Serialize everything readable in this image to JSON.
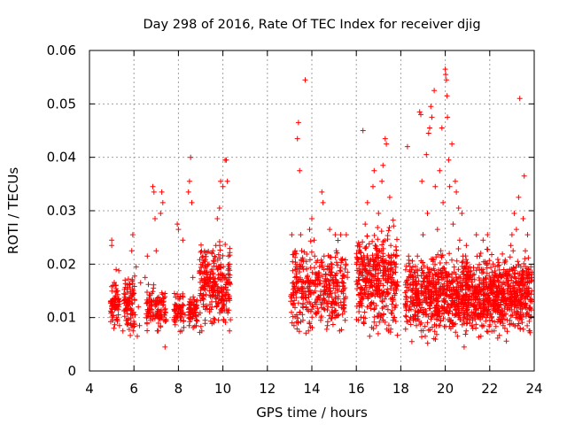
{
  "chart_data": {
    "type": "scatter",
    "title": "Day 298 of 2016, Rate Of TEC Index for receiver djig",
    "xlabel": "GPS time / hours",
    "ylabel": "ROTI / TECUs",
    "xlim": [
      4,
      24
    ],
    "ylim": [
      0,
      0.06
    ],
    "xticks": [
      4,
      6,
      8,
      10,
      12,
      14,
      16,
      18,
      20,
      22,
      24
    ],
    "yticks": [
      0,
      0.01,
      0.02,
      0.03,
      0.04,
      0.05,
      0.06
    ],
    "xtick_labels": [
      "4",
      "6",
      "8",
      "10",
      "12",
      "14",
      "16",
      "18",
      "20",
      "22",
      "24"
    ],
    "ytick_labels": [
      "0",
      "0.01",
      "0.02",
      "0.03",
      "0.04",
      "0.05",
      "0.06"
    ],
    "grid": true,
    "marker": "+",
    "marker_color": "#ff0000",
    "series": [
      {
        "name": "ROTI",
        "points": [
          [
            5.0,
            0.0245
          ],
          [
            5.0,
            0.0235
          ],
          [
            5.0,
            0.011
          ],
          [
            5.05,
            0.0095
          ],
          [
            5.1,
            0.008
          ],
          [
            5.15,
            0.0125
          ],
          [
            5.2,
            0.019
          ],
          [
            5.25,
            0.015
          ],
          [
            5.3,
            0.0105
          ],
          [
            5.35,
            0.0085
          ],
          [
            5.5,
            0.0075
          ],
          [
            5.6,
            0.017
          ],
          [
            5.7,
            0.0115
          ],
          [
            5.75,
            0.009
          ],
          [
            5.8,
            0.013
          ],
          [
            5.9,
            0.0225
          ],
          [
            5.95,
            0.0255
          ],
          [
            6.0,
            0.0145
          ],
          [
            6.05,
            0.0105
          ],
          [
            6.1,
            0.0195
          ],
          [
            6.15,
            0.0065
          ],
          [
            6.2,
            0.012
          ],
          [
            6.25,
            0.0085
          ],
          [
            6.3,
            0.0165
          ],
          [
            6.5,
            0.0175
          ],
          [
            6.6,
            0.0215
          ],
          [
            6.7,
            0.0135
          ],
          [
            6.75,
            0.0095
          ],
          [
            6.8,
            0.0115
          ],
          [
            6.85,
            0.0345
          ],
          [
            6.9,
            0.0335
          ],
          [
            6.95,
            0.0285
          ],
          [
            7.0,
            0.0225
          ],
          [
            7.05,
            0.0075
          ],
          [
            7.1,
            0.0115
          ],
          [
            7.2,
            0.0295
          ],
          [
            7.25,
            0.0335
          ],
          [
            7.3,
            0.0315
          ],
          [
            7.35,
            0.0105
          ],
          [
            7.4,
            0.0145
          ],
          [
            7.4,
            0.0045
          ],
          [
            7.8,
            0.0115
          ],
          [
            7.9,
            0.0095
          ],
          [
            7.95,
            0.0275
          ],
          [
            8.0,
            0.0265
          ],
          [
            8.05,
            0.0135
          ],
          [
            8.15,
            0.0075
          ],
          [
            8.2,
            0.0245
          ],
          [
            8.3,
            0.0105
          ],
          [
            8.45,
            0.0335
          ],
          [
            8.5,
            0.0355
          ],
          [
            8.55,
            0.04
          ],
          [
            8.6,
            0.0315
          ],
          [
            8.65,
            0.0175
          ],
          [
            8.7,
            0.0125
          ],
          [
            8.8,
            0.0085
          ],
          [
            8.9,
            0.0105
          ],
          [
            9.0,
            0.0145
          ],
          [
            9.05,
            0.0075
          ],
          [
            9.1,
            0.0215
          ],
          [
            9.2,
            0.0095
          ],
          [
            9.3,
            0.0185
          ],
          [
            9.4,
            0.0115
          ],
          [
            9.5,
            0.0155
          ],
          [
            9.55,
            0.0225
          ],
          [
            9.6,
            0.0205
          ],
          [
            9.7,
            0.0135
          ],
          [
            9.75,
            0.0285
          ],
          [
            9.8,
            0.0095
          ],
          [
            9.85,
            0.0305
          ],
          [
            9.9,
            0.0355
          ],
          [
            10.0,
            0.0345
          ],
          [
            10.05,
            0.0125
          ],
          [
            10.1,
            0.0395
          ],
          [
            10.15,
            0.0395
          ],
          [
            10.2,
            0.0355
          ],
          [
            10.25,
            0.0215
          ],
          [
            10.3,
            0.0175
          ],
          [
            10.3,
            0.0075
          ],
          [
            10.25,
            0.0135
          ],
          [
            13.1,
            0.0255
          ],
          [
            13.15,
            0.0125
          ],
          [
            13.2,
            0.0085
          ],
          [
            13.25,
            0.0225
          ],
          [
            13.3,
            0.0175
          ],
          [
            13.35,
            0.0435
          ],
          [
            13.4,
            0.0465
          ],
          [
            13.45,
            0.0375
          ],
          [
            13.5,
            0.0255
          ],
          [
            13.55,
            0.0145
          ],
          [
            13.6,
            0.0095
          ],
          [
            13.7,
            0.0545
          ],
          [
            13.75,
            0.0205
          ],
          [
            13.8,
            0.0115
          ],
          [
            13.85,
            0.0075
          ],
          [
            13.9,
            0.0265
          ],
          [
            13.95,
            0.0165
          ],
          [
            14.0,
            0.0285
          ],
          [
            14.1,
            0.0245
          ],
          [
            14.2,
            0.0125
          ],
          [
            14.3,
            0.0175
          ],
          [
            14.4,
            0.0095
          ],
          [
            14.45,
            0.0335
          ],
          [
            14.5,
            0.0315
          ],
          [
            14.55,
            0.0215
          ],
          [
            14.6,
            0.0145
          ],
          [
            14.7,
            0.0085
          ],
          [
            14.8,
            0.0265
          ],
          [
            14.9,
            0.0185
          ],
          [
            15.0,
            0.0125
          ],
          [
            15.05,
            0.0255
          ],
          [
            15.1,
            0.0225
          ],
          [
            15.2,
            0.0105
          ],
          [
            15.25,
            0.0075
          ],
          [
            15.3,
            0.0255
          ],
          [
            15.4,
            0.0165
          ],
          [
            15.45,
            0.0135
          ],
          [
            15.5,
            0.0095
          ],
          [
            15.55,
            0.0255
          ],
          [
            15.6,
            0.0185
          ],
          [
            16.1,
            0.0095
          ],
          [
            16.2,
            0.0145
          ],
          [
            16.25,
            0.0205
          ],
          [
            16.3,
            0.045
          ],
          [
            16.4,
            0.0275
          ],
          [
            16.5,
            0.0315
          ],
          [
            16.55,
            0.0185
          ],
          [
            16.6,
            0.0065
          ],
          [
            16.7,
            0.0125
          ],
          [
            16.75,
            0.0345
          ],
          [
            16.8,
            0.0375
          ],
          [
            16.85,
            0.0235
          ],
          [
            16.9,
            0.0085
          ],
          [
            16.95,
            0.0155
          ],
          [
            17.0,
            0.0295
          ],
          [
            17.05,
            0.0225
          ],
          [
            17.1,
            0.0105
          ],
          [
            17.15,
            0.0355
          ],
          [
            17.2,
            0.0385
          ],
          [
            17.25,
            0.0195
          ],
          [
            17.3,
            0.0435
          ],
          [
            17.35,
            0.0425
          ],
          [
            17.4,
            0.0165
          ],
          [
            17.45,
            0.0075
          ],
          [
            17.5,
            0.0325
          ],
          [
            17.55,
            0.0235
          ],
          [
            17.6,
            0.0125
          ],
          [
            17.65,
            0.0095
          ],
          [
            17.7,
            0.0185
          ],
          [
            17.75,
            0.0145
          ],
          [
            18.3,
            0.042
          ],
          [
            18.35,
            0.0215
          ],
          [
            18.4,
            0.0095
          ],
          [
            18.45,
            0.0175
          ],
          [
            18.5,
            0.0055
          ],
          [
            18.55,
            0.0125
          ],
          [
            18.6,
            0.0185
          ],
          [
            18.7,
            0.0085
          ],
          [
            18.75,
            0.0215
          ],
          [
            18.8,
            0.0145
          ],
          [
            18.85,
            0.0485
          ],
          [
            18.9,
            0.048
          ],
          [
            18.95,
            0.0355
          ],
          [
            19.0,
            0.0255
          ],
          [
            19.05,
            0.0115
          ],
          [
            19.1,
            0.0065
          ],
          [
            19.15,
            0.0405
          ],
          [
            19.2,
            0.0295
          ],
          [
            19.25,
            0.0445
          ],
          [
            19.3,
            0.0455
          ],
          [
            19.35,
            0.0495
          ],
          [
            19.4,
            0.0475
          ],
          [
            19.45,
            0.0205
          ],
          [
            19.5,
            0.0525
          ],
          [
            19.55,
            0.0345
          ],
          [
            19.6,
            0.0155
          ],
          [
            19.65,
            0.0265
          ],
          [
            19.7,
            0.0085
          ],
          [
            19.75,
            0.0375
          ],
          [
            19.8,
            0.0225
          ],
          [
            19.85,
            0.0455
          ],
          [
            19.9,
            0.0315
          ],
          [
            19.95,
            0.0135
          ],
          [
            20.0,
            0.0565
          ],
          [
            20.02,
            0.0555
          ],
          [
            20.05,
            0.0545
          ],
          [
            20.08,
            0.0515
          ],
          [
            20.1,
            0.0475
          ],
          [
            20.15,
            0.0395
          ],
          [
            20.2,
            0.0345
          ],
          [
            20.25,
            0.0095
          ],
          [
            20.3,
            0.0425
          ],
          [
            20.35,
            0.0275
          ],
          [
            20.4,
            0.0185
          ],
          [
            20.45,
            0.0355
          ],
          [
            20.5,
            0.0335
          ],
          [
            20.55,
            0.0065
          ],
          [
            20.6,
            0.0305
          ],
          [
            20.65,
            0.0245
          ],
          [
            20.7,
            0.0125
          ],
          [
            20.75,
            0.0295
          ],
          [
            20.8,
            0.0205
          ],
          [
            20.85,
            0.0045
          ],
          [
            20.9,
            0.0165
          ],
          [
            20.95,
            0.0235
          ],
          [
            21.0,
            0.0115
          ],
          [
            21.1,
            0.0195
          ],
          [
            21.2,
            0.0085
          ],
          [
            21.3,
            0.0145
          ],
          [
            21.4,
            0.0255
          ],
          [
            21.5,
            0.0105
          ],
          [
            21.55,
            0.0215
          ],
          [
            21.6,
            0.0065
          ],
          [
            21.7,
            0.0245
          ],
          [
            21.8,
            0.0135
          ],
          [
            21.9,
            0.0255
          ],
          [
            22.0,
            0.0095
          ],
          [
            22.1,
            0.0185
          ],
          [
            22.2,
            0.0075
          ],
          [
            22.3,
            0.0155
          ],
          [
            22.4,
            0.0115
          ],
          [
            22.5,
            0.0175
          ],
          [
            22.6,
            0.0085
          ],
          [
            22.7,
            0.0205
          ],
          [
            22.8,
            0.0135
          ],
          [
            22.9,
            0.0095
          ],
          [
            22.95,
            0.0235
          ],
          [
            23.0,
            0.0255
          ],
          [
            23.05,
            0.0225
          ],
          [
            23.1,
            0.0295
          ],
          [
            23.15,
            0.0145
          ],
          [
            23.2,
            0.0265
          ],
          [
            23.25,
            0.0085
          ],
          [
            23.3,
            0.0325
          ],
          [
            23.35,
            0.051
          ],
          [
            23.4,
            0.0195
          ],
          [
            23.45,
            0.0125
          ],
          [
            23.5,
            0.0285
          ],
          [
            23.55,
            0.0365
          ],
          [
            23.6,
            0.0225
          ],
          [
            23.65,
            0.0155
          ],
          [
            23.7,
            0.0255
          ],
          [
            23.75,
            0.0105
          ],
          [
            23.8,
            0.0075
          ],
          [
            23.85,
            0.0195
          ]
        ]
      }
    ],
    "dense_segments": [
      {
        "x_start": 4.95,
        "x_end": 5.35,
        "y_min": 0.007,
        "y_max": 0.0175,
        "count": 70
      },
      {
        "x_start": 5.55,
        "x_end": 6.05,
        "y_min": 0.0055,
        "y_max": 0.0185,
        "count": 90
      },
      {
        "x_start": 6.55,
        "x_end": 7.45,
        "y_min": 0.006,
        "y_max": 0.0155,
        "count": 110
      },
      {
        "x_start": 7.8,
        "x_end": 8.25,
        "y_min": 0.007,
        "y_max": 0.0145,
        "count": 60
      },
      {
        "x_start": 8.45,
        "x_end": 8.85,
        "y_min": 0.0075,
        "y_max": 0.014,
        "count": 60
      },
      {
        "x_start": 8.95,
        "x_end": 10.35,
        "y_min": 0.0065,
        "y_max": 0.0235,
        "count": 260
      },
      {
        "x_start": 13.05,
        "x_end": 15.6,
        "y_min": 0.005,
        "y_max": 0.0225,
        "count": 360
      },
      {
        "x_start": 16.0,
        "x_end": 17.85,
        "y_min": 0.0045,
        "y_max": 0.0265,
        "count": 380
      },
      {
        "x_start": 18.2,
        "x_end": 23.9,
        "y_min": 0.004,
        "y_max": 0.0215,
        "count": 1300
      }
    ]
  }
}
